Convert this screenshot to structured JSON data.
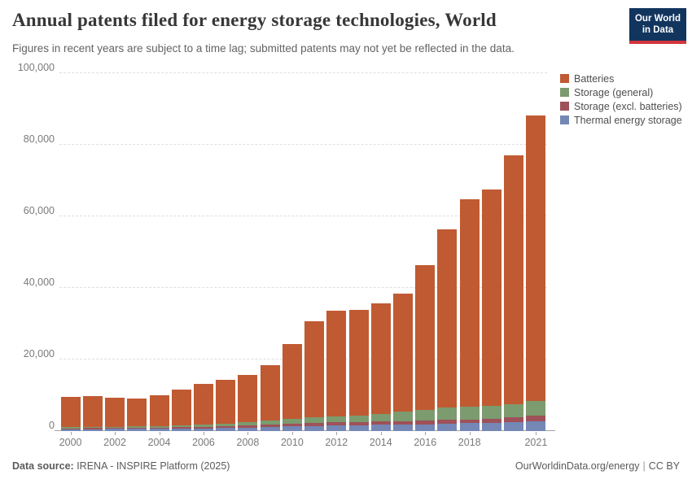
{
  "header": {
    "title": "Annual patents filed for energy storage technologies, World",
    "subtitle": "Figures in recent years are subject to a time lag; submitted patents may not yet be reflected in the data.",
    "logo": {
      "line1": "Our World",
      "line2": "in Data",
      "bg_color": "#12355e",
      "accent_color": "#d2353c"
    }
  },
  "legend": {
    "position": "top-right",
    "items": [
      {
        "label": "Batteries",
        "color": "#c05a32"
      },
      {
        "label": "Storage (general)",
        "color": "#7c9b6e"
      },
      {
        "label": "Storage (excl. batteries)",
        "color": "#9e5159"
      },
      {
        "label": "Thermal energy storage",
        "color": "#7487b5"
      }
    ]
  },
  "chart_data": {
    "type": "bar",
    "stacked": true,
    "title": "Annual patents filed for energy storage technologies, World",
    "xlabel": "",
    "ylabel": "",
    "ylim": [
      0,
      100000
    ],
    "grid": "horizontal-dashed",
    "yticks": [
      {
        "value": 0,
        "label": "0"
      },
      {
        "value": 20000,
        "label": "20,000"
      },
      {
        "value": 40000,
        "label": "40,000"
      },
      {
        "value": 60000,
        "label": "60,000"
      },
      {
        "value": 80000,
        "label": "80,000"
      },
      {
        "value": 100000,
        "label": "100,000"
      }
    ],
    "x": [
      2000,
      2001,
      2002,
      2003,
      2004,
      2005,
      2006,
      2007,
      2008,
      2009,
      2010,
      2011,
      2012,
      2013,
      2014,
      2015,
      2016,
      2017,
      2018,
      2019,
      2020,
      2021
    ],
    "xticks_labeled": [
      "2000",
      "2002",
      "2004",
      "2006",
      "2008",
      "2010",
      "2012",
      "2014",
      "2016",
      "2018",
      "2021"
    ],
    "stack_order_bottom_to_top": [
      "Thermal energy storage",
      "Storage (excl. batteries)",
      "Storage (general)",
      "Batteries"
    ],
    "series": [
      {
        "name": "Batteries",
        "color": "#c05a32",
        "values": [
          8540,
          8630,
          8040,
          7790,
          8590,
          10000,
          11350,
          12190,
          13150,
          15460,
          20990,
          26770,
          29550,
          29550,
          31000,
          33000,
          40400,
          49950,
          57900,
          60500,
          69500,
          79800
        ]
      },
      {
        "name": "Storage (general)",
        "color": "#7c9b6e",
        "values": [
          260,
          300,
          340,
          390,
          460,
          560,
          660,
          760,
          980,
          1100,
          1350,
          1550,
          1600,
          1650,
          2100,
          2700,
          3100,
          3400,
          3700,
          3500,
          3800,
          4100
        ]
      },
      {
        "name": "Storage (excl. batteries)",
        "color": "#9e5159",
        "values": [
          250,
          260,
          280,
          300,
          340,
          390,
          430,
          470,
          520,
          640,
          760,
          830,
          900,
          900,
          950,
          900,
          950,
          1000,
          1000,
          1100,
          1300,
          1600
        ]
      },
      {
        "name": "Thermal energy storage",
        "color": "#7487b5",
        "values": [
          550,
          560,
          590,
          620,
          660,
          700,
          760,
          830,
          1000,
          1150,
          1300,
          1450,
          1600,
          1700,
          1750,
          1800,
          1900,
          2100,
          2200,
          2350,
          2500,
          2800
        ]
      }
    ],
    "totals": [
      9600,
      9750,
      9250,
      9100,
      10050,
      11650,
      13200,
      14250,
      15650,
      18350,
      24400,
      30600,
      33650,
      33800,
      35800,
      38400,
      46350,
      56450,
      64800,
      67450,
      77100,
      88300
    ]
  },
  "footer": {
    "source_label": "Data source:",
    "source_text": " IRENA - INSPIRE Platform (2025)",
    "site_link": "OurWorldinData.org/energy",
    "separator": "|",
    "license": "CC BY"
  }
}
